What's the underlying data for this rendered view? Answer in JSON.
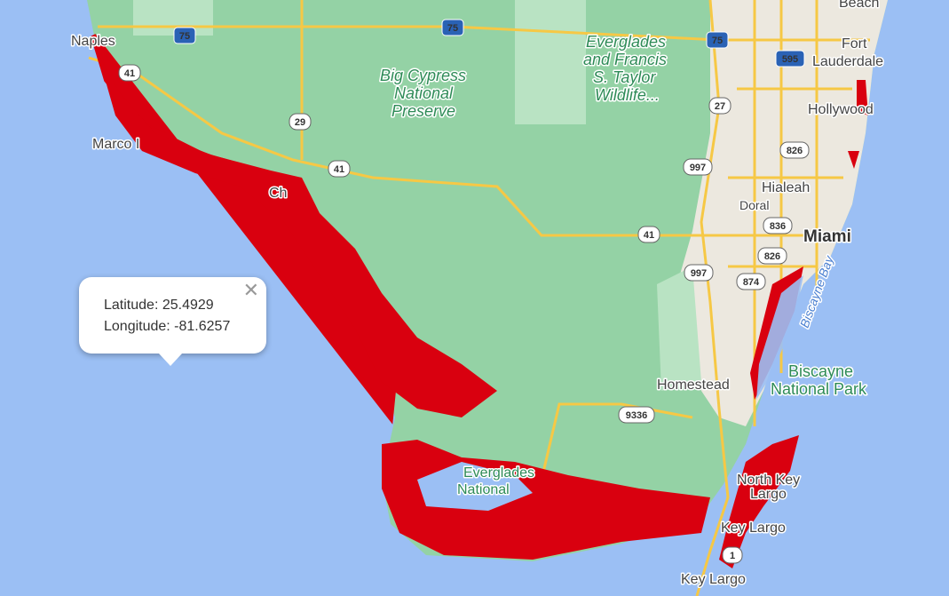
{
  "map": {
    "colors": {
      "water": "#9bbff4",
      "land": "#94d2a5",
      "urban": "#ece8df",
      "flood": "#d9000f",
      "road": "#f6c845"
    },
    "labels": {
      "naples": "Naples",
      "marco": "Marco I",
      "beach": "Beach",
      "fort_lauderdale_1": "Fort",
      "fort_lauderdale_2": "Lauderdale",
      "hollywood": "Hollywood",
      "hialeah": "Hialeah",
      "doral": "Doral",
      "miami": "Miami",
      "homestead": "Homestead",
      "north_key_largo_1": "North Key",
      "north_key_largo_2": "Largo",
      "key_largo_1": "Key Largo",
      "key_largo_2": "Key Largo",
      "big_cypress_1": "Big Cypress",
      "big_cypress_2": "National",
      "big_cypress_3": "Preserve",
      "everglades_fst_1": "Everglades",
      "everglades_fst_2": "and Francis",
      "everglades_fst_3": "S. Taylor",
      "everglades_fst_4": "Wildlife...",
      "everglades_np_1": "Everglades",
      "everglades_np_2": "National",
      "biscayne_np_1": "Biscayne",
      "biscayne_np_2": "National Park",
      "biscayne_bay": "Biscayne Bay",
      "chokoloskee": "Ch"
    },
    "shields": {
      "i75a": "75",
      "i75b": "75",
      "i75c": "75",
      "i595": "595",
      "us41a": "41",
      "us41b": "41",
      "us41c": "41",
      "sr29": "29",
      "sr27": "27",
      "sr997a": "997",
      "sr997b": "997",
      "sr826a": "826",
      "sr826b": "826",
      "sr836": "836",
      "sr874": "874",
      "sr9336": "9336",
      "us1": "1"
    }
  },
  "popup": {
    "latitude_label": "Latitude: 25.4929",
    "longitude_label": "Longitude: -81.6257",
    "close_icon": "close-x"
  }
}
